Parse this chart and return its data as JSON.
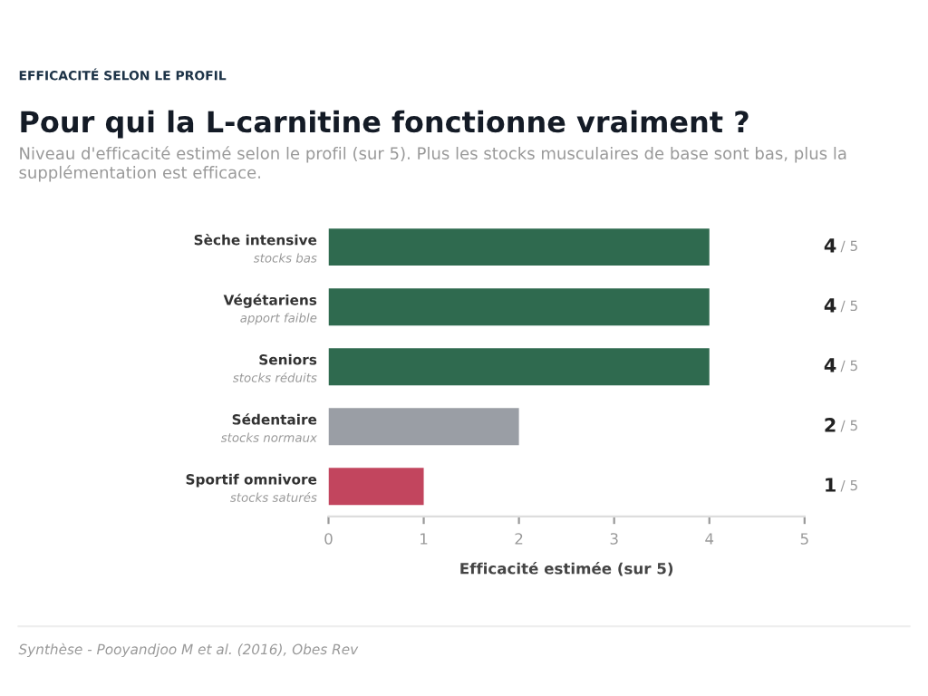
{
  "chart_data": {
    "type": "bar",
    "orientation": "horizontal",
    "title": "Pour qui la L-carnitine fonctionne vraiment ?",
    "subtitle": "Niveau d'efficacité estimé selon le profil (sur 5). Plus les stocks musculaires de base sont bas, plus la supplémentation est efficace.",
    "annotations": [
      "EFFICACITÉ SELON LE PROFIL",
      "Synthèse - Pooyandjoo M et al. (2016), Obes Rev",
      "/ 5",
      "/ 5",
      "/ 5",
      "/ 5",
      "/ 5"
    ],
    "categories": [
      "Sèche intensive\nstocks bas",
      "Végétariens\napport faible",
      "Seniors\nstocks réduits",
      "Sédentaire\nstocks normaux",
      "Sportif omnivore\nstocks saturés"
    ],
    "values": [
      4,
      4,
      4,
      2,
      1
    ],
    "colors": [
      "#2f6a4f",
      "#2f6a4f",
      "#2f6a4f",
      "#9a9ea5",
      "#c2455e"
    ],
    "data_labels": true,
    "xlabel": "Efficacité estimée (sur 5)",
    "xlim": [
      0,
      5
    ],
    "xticks": [
      0,
      1,
      2,
      3,
      4,
      5
    ],
    "grid": false,
    "legend": false
  }
}
